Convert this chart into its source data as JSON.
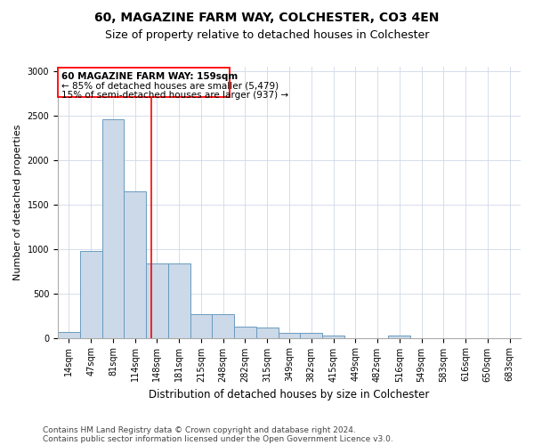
{
  "title": "60, MAGAZINE FARM WAY, COLCHESTER, CO3 4EN",
  "subtitle": "Size of property relative to detached houses in Colchester",
  "xlabel": "Distribution of detached houses by size in Colchester",
  "ylabel": "Number of detached properties",
  "bar_color": "#ccd9e8",
  "bar_edge_color": "#6a9bbf",
  "categories": [
    "14sqm",
    "47sqm",
    "81sqm",
    "114sqm",
    "148sqm",
    "181sqm",
    "215sqm",
    "248sqm",
    "282sqm",
    "315sqm",
    "349sqm",
    "382sqm",
    "415sqm",
    "449sqm",
    "482sqm",
    "516sqm",
    "549sqm",
    "583sqm",
    "616sqm",
    "650sqm",
    "683sqm"
  ],
  "values": [
    65,
    980,
    2460,
    1650,
    840,
    840,
    270,
    265,
    125,
    120,
    55,
    55,
    25,
    0,
    0,
    25,
    0,
    0,
    0,
    0,
    0
  ],
  "ylim": [
    0,
    3050
  ],
  "yticks": [
    0,
    500,
    1000,
    1500,
    2000,
    2500,
    3000
  ],
  "annotation_line1": "60 MAGAZINE FARM WAY: 159sqm",
  "annotation_line2": "← 85% of detached houses are smaller (5,479)",
  "annotation_line3": "15% of semi-detached houses are larger (937) →",
  "vline_position": 3.73,
  "footer1": "Contains HM Land Registry data © Crown copyright and database right 2024.",
  "footer2": "Contains public sector information licensed under the Open Government Licence v3.0.",
  "title_fontsize": 10,
  "subtitle_fontsize": 9,
  "xlabel_fontsize": 8.5,
  "ylabel_fontsize": 8,
  "tick_fontsize": 7,
  "footer_fontsize": 6.5,
  "annot_fontsize": 7.5
}
